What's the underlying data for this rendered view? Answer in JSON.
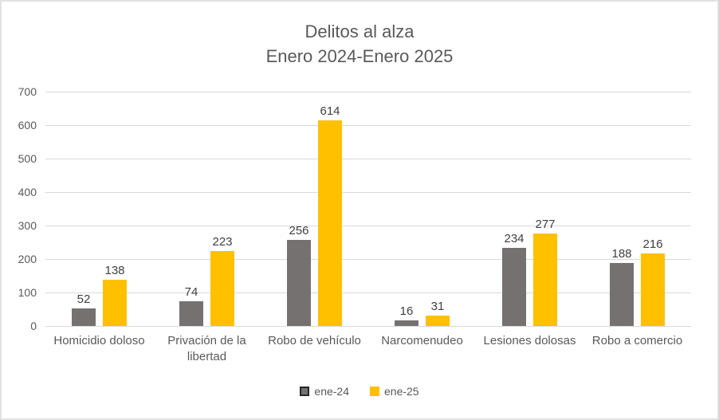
{
  "title": {
    "line1": "Delitos al alza",
    "line2": "Enero 2024-Enero 2025"
  },
  "colors": {
    "series_ene24": "#767171",
    "series_ene25": "#FFC000",
    "gridline": "#D9D9D9",
    "axis_text": "#595959",
    "title_text": "#595959",
    "data_label_text": "#404040",
    "card_border": "#E2E2E2",
    "legend_marker_ene24_border": "#262626"
  },
  "chart_data": {
    "type": "bar",
    "title": "Delitos al alza Enero 2024-Enero 2025",
    "xlabel": "",
    "ylabel": "",
    "categories": [
      "Homicidio doloso",
      "Privación de la libertad",
      "Robo de vehículo",
      "Narcomenudeo",
      "Lesiones dolosas",
      "Robo a comercio"
    ],
    "series": [
      {
        "name": "ene-24",
        "color": "#767171",
        "values": [
          52,
          74,
          256,
          16,
          234,
          188
        ]
      },
      {
        "name": "ene-25",
        "color": "#FFC000",
        "values": [
          138,
          223,
          614,
          31,
          277,
          216
        ]
      }
    ],
    "ylim": [
      0,
      700
    ],
    "yticks": [
      0,
      100,
      200,
      300,
      400,
      500,
      600,
      700
    ],
    "grid": true,
    "data_labels": true,
    "legend_position": "bottom"
  }
}
